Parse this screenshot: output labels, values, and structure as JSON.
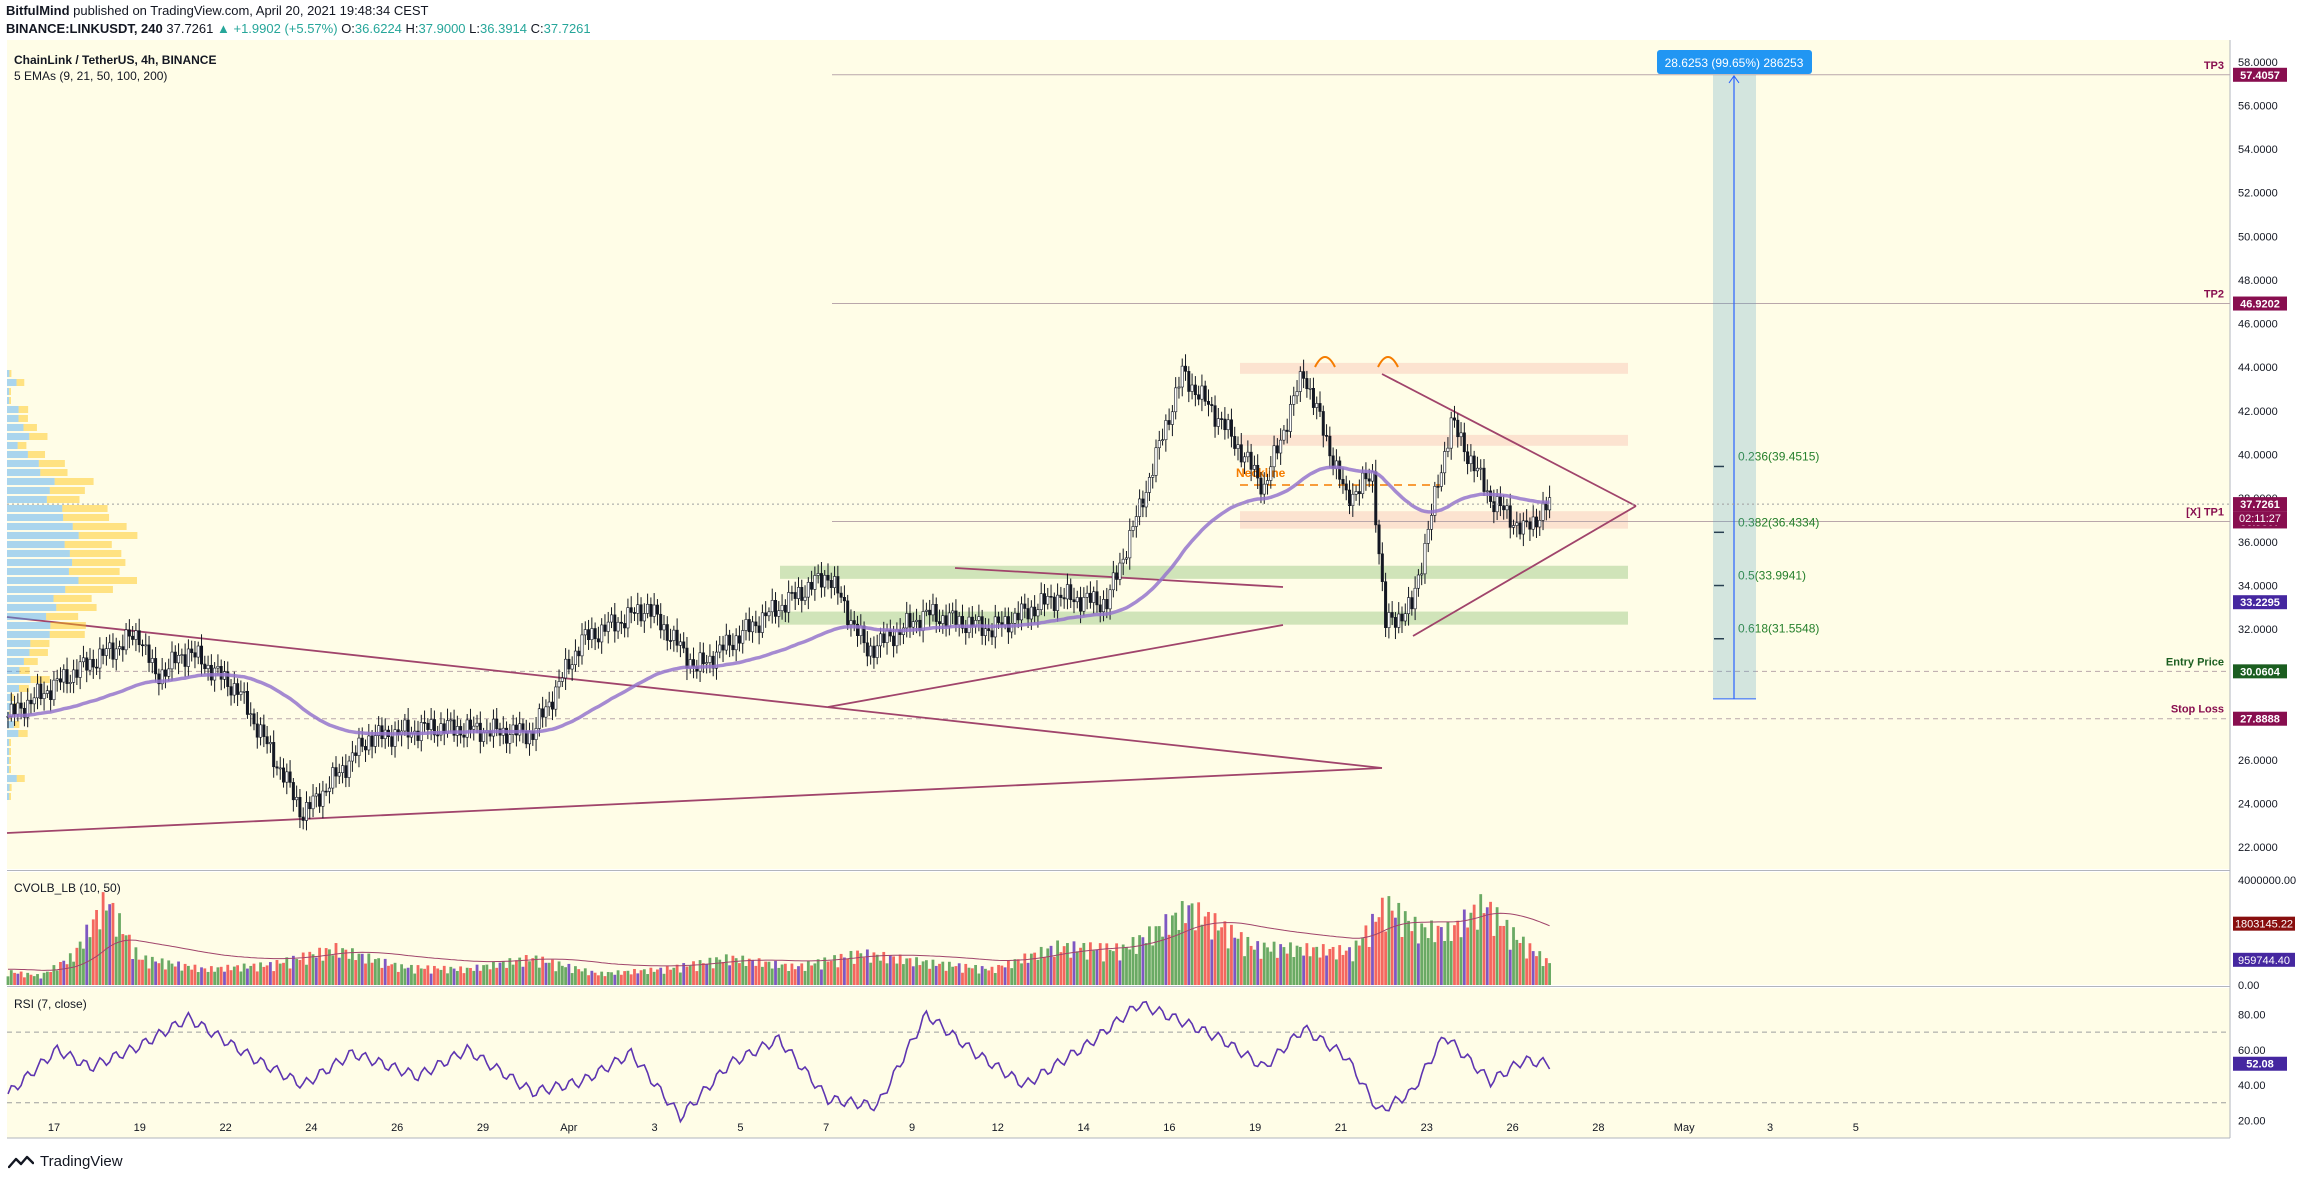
{
  "header": {
    "author": "BitfulMind",
    "published": "published on TradingView.com, April 20, 2021 19:48:34 CEST",
    "symbol_line": "BINANCE:LINKUSDT, 240",
    "last": "37.7261",
    "change": "▲ +1.9902 (+5.57%)",
    "o_label": "O:",
    "o": "36.6224",
    "h_label": "H:",
    "h": "37.9000",
    "l_label": "L:",
    "l": "36.3914",
    "c_label": "C:",
    "c": "37.7261"
  },
  "pane_labels": {
    "title": "ChainLink / TetherUS, 4h, BINANCE",
    "ema": "5 EMAs (9, 21, 50, 100, 200)",
    "volume": "CVOLB_LB (10, 50)",
    "rsi": "RSI (7, close)"
  },
  "footer": {
    "brand": "TradingView"
  },
  "colors": {
    "background": "#fffde7",
    "bull": "#ffffff",
    "bear": "#131722",
    "trendline": "#a0446b",
    "ema": "#9575cd",
    "vol_up": "#6aaa64",
    "vol_down": "#f4675f",
    "vol_neutral": "#7e57c2",
    "rsi": "#5e35b1"
  },
  "chart_data": [
    {
      "type": "candlestick",
      "x_ticks": [
        "17",
        "19",
        "22",
        "24",
        "26",
        "29",
        "Apr",
        "3",
        "5",
        "7",
        "9",
        "12",
        "14",
        "16",
        "19",
        "21",
        "23",
        "26",
        "28",
        "May",
        "3",
        "5"
      ],
      "y_ticks": [
        "22.0000",
        "24.0000",
        "26.0000",
        "28.0000",
        "30.0000",
        "32.0000",
        "34.0000",
        "36.0000",
        "38.0000",
        "40.0000",
        "42.0000",
        "44.0000",
        "46.0000",
        "48.0000",
        "50.0000",
        "52.0000",
        "54.0000",
        "56.0000",
        "58.0000"
      ],
      "ylim": [
        21,
        59
      ],
      "price_anchors": [
        [
          0,
          28.0
        ],
        [
          20,
          30.0
        ],
        [
          40,
          31.8
        ],
        [
          45,
          29.8
        ],
        [
          55,
          31.0
        ],
        [
          70,
          29.2
        ],
        [
          85,
          25.0
        ],
        [
          90,
          23.5
        ],
        [
          110,
          27.0
        ],
        [
          130,
          27.5
        ],
        [
          160,
          27.2
        ],
        [
          175,
          31.5
        ],
        [
          195,
          33.0
        ],
        [
          210,
          30.2
        ],
        [
          230,
          32.5
        ],
        [
          250,
          34.5
        ],
        [
          262,
          31.0
        ],
        [
          280,
          32.7
        ],
        [
          300,
          32.0
        ],
        [
          320,
          33.5
        ],
        [
          335,
          33.2
        ],
        [
          345,
          37.5
        ],
        [
          358,
          43.7
        ],
        [
          370,
          41.5
        ],
        [
          383,
          38.5
        ],
        [
          395,
          43.8
        ],
        [
          408,
          38.0
        ],
        [
          416,
          39.0
        ],
        [
          420,
          32.2
        ],
        [
          428,
          33.0
        ],
        [
          440,
          41.5
        ],
        [
          452,
          38.0
        ],
        [
          462,
          36.5
        ],
        [
          470,
          37.7
        ]
      ],
      "levels": [
        {
          "label": "TP3",
          "value": "57.4057"
        },
        {
          "label": "TP2",
          "value": "46.9202"
        },
        {
          "label": "[X] TP1",
          "value": "36.9307"
        },
        {
          "label": "Entry Price",
          "value": "30.0604"
        },
        {
          "label": "Stop Loss",
          "value": "27.8888"
        }
      ],
      "badges": [
        {
          "value": "37.7261"
        },
        {
          "value": "02:11:27"
        },
        {
          "value": "33.2295"
        }
      ],
      "fib_levels": [
        {
          "label": "0.236(39.4515)",
          "price": 39.4515
        },
        {
          "label": "0.382(36.4334)",
          "price": 36.4334
        },
        {
          "label": "0.5(33.9941)",
          "price": 33.9941
        },
        {
          "label": "0.618(31.5548)",
          "price": 31.5548
        }
      ],
      "projection": {
        "label": "28.6253 (99.65%) 286253",
        "from": 28.8,
        "to": 57.4
      },
      "annotations": [
        {
          "text": "Neckline",
          "price": 38.6
        }
      ],
      "zones": [
        {
          "from": 43.7,
          "to": 44.2,
          "kind": "resistance"
        },
        {
          "from": 40.4,
          "to": 40.9,
          "kind": "resistance"
        },
        {
          "from": 36.6,
          "to": 37.4,
          "kind": "resistance"
        },
        {
          "from": 34.3,
          "to": 34.9,
          "kind": "support"
        },
        {
          "from": 32.2,
          "to": 32.8,
          "kind": "support"
        }
      ]
    },
    {
      "type": "bar",
      "name": "CVOLB_LB (10, 50)",
      "y_ticks": [
        "4000000.00",
        "0.00"
      ],
      "ylim": [
        0,
        4000000
      ],
      "badges": [
        {
          "value": "1803145.22"
        },
        {
          "value": "959744.40"
        }
      ],
      "anchors": [
        [
          0,
          600000
        ],
        [
          10,
          400000
        ],
        [
          20,
          1300000
        ],
        [
          30,
          3800000
        ],
        [
          40,
          1200000
        ],
        [
          60,
          700000
        ],
        [
          80,
          900000
        ],
        [
          100,
          1600000
        ],
        [
          120,
          800000
        ],
        [
          140,
          700000
        ],
        [
          160,
          1200000
        ],
        [
          180,
          500000
        ],
        [
          200,
          700000
        ],
        [
          220,
          1200000
        ],
        [
          240,
          800000
        ],
        [
          260,
          1400000
        ],
        [
          280,
          1000000
        ],
        [
          300,
          700000
        ],
        [
          320,
          1700000
        ],
        [
          340,
          1600000
        ],
        [
          350,
          2400000
        ],
        [
          360,
          3400000
        ],
        [
          370,
          2600000
        ],
        [
          380,
          1700000
        ],
        [
          395,
          1600000
        ],
        [
          410,
          1500000
        ],
        [
          420,
          3600000
        ],
        [
          430,
          2500000
        ],
        [
          440,
          2400000
        ],
        [
          450,
          3600000
        ],
        [
          460,
          2100000
        ],
        [
          470,
          959744
        ]
      ]
    },
    {
      "type": "line",
      "name": "RSI (7, close)",
      "y_ticks": [
        "80.00",
        "60.00",
        "40.00",
        "20.00"
      ],
      "ylim": [
        10,
        95
      ],
      "badges": [
        {
          "value": "52.08"
        }
      ],
      "anchors": [
        [
          0,
          35
        ],
        [
          15,
          60
        ],
        [
          25,
          50
        ],
        [
          40,
          62
        ],
        [
          55,
          78
        ],
        [
          75,
          55
        ],
        [
          90,
          40
        ],
        [
          105,
          58
        ],
        [
          125,
          45
        ],
        [
          140,
          60
        ],
        [
          160,
          36
        ],
        [
          175,
          42
        ],
        [
          190,
          58
        ],
        [
          205,
          22
        ],
        [
          220,
          52
        ],
        [
          235,
          66
        ],
        [
          250,
          32
        ],
        [
          265,
          28
        ],
        [
          280,
          80
        ],
        [
          295,
          58
        ],
        [
          310,
          40
        ],
        [
          330,
          64
        ],
        [
          345,
          86
        ],
        [
          358,
          76
        ],
        [
          370,
          66
        ],
        [
          383,
          50
        ],
        [
          395,
          72
        ],
        [
          408,
          56
        ],
        [
          418,
          25
        ],
        [
          428,
          36
        ],
        [
          438,
          68
        ],
        [
          452,
          42
        ],
        [
          462,
          54
        ],
        [
          470,
          52.08
        ]
      ]
    }
  ]
}
